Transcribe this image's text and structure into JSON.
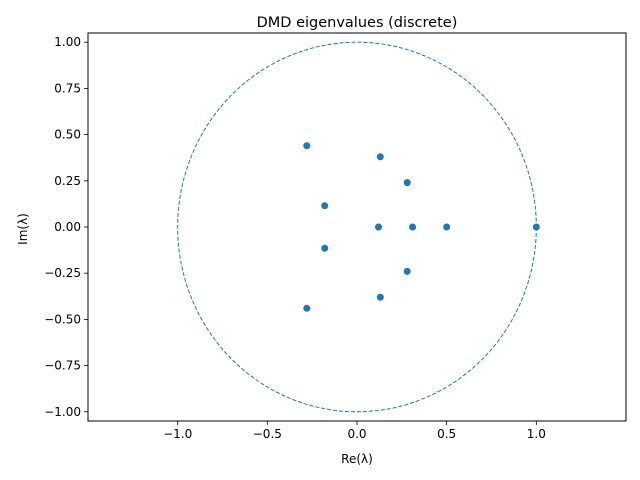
{
  "chart_data": {
    "type": "scatter",
    "title": "DMD eigenvalues (discrete)",
    "xlabel": "Re(λ)",
    "ylabel": "Im(λ)",
    "xlim": [
      -1.5,
      1.5
    ],
    "ylim": [
      -1.05,
      1.05
    ],
    "x_ticks": [
      -1.0,
      -0.5,
      0.0,
      0.5,
      1.0
    ],
    "x_tick_labels": [
      "−1.0",
      "−0.5",
      "0.0",
      "0.5",
      "1.0"
    ],
    "y_ticks": [
      -1.0,
      -0.75,
      -0.5,
      -0.25,
      0.0,
      0.25,
      0.5,
      0.75,
      1.0
    ],
    "y_tick_labels": [
      "−1.00",
      "−0.75",
      "−0.50",
      "−0.25",
      "0.00",
      "0.25",
      "0.50",
      "0.75",
      "1.00"
    ],
    "grid": false,
    "legend": "none",
    "marker_color": "#1f77b4",
    "circle_color": "#1f77b4",
    "unit_circle": {
      "center": [
        0,
        0
      ],
      "radius": 1,
      "style": "dashed"
    },
    "points": [
      {
        "x": 1.0,
        "y": 0.0
      },
      {
        "x": 0.5,
        "y": 0.0
      },
      {
        "x": 0.31,
        "y": 0.0
      },
      {
        "x": 0.12,
        "y": 0.0
      },
      {
        "x": 0.28,
        "y": 0.24
      },
      {
        "x": 0.28,
        "y": -0.24
      },
      {
        "x": 0.13,
        "y": 0.38
      },
      {
        "x": 0.13,
        "y": -0.38
      },
      {
        "x": -0.18,
        "y": 0.115
      },
      {
        "x": -0.18,
        "y": -0.115
      },
      {
        "x": -0.28,
        "y": 0.44
      },
      {
        "x": -0.28,
        "y": -0.44
      }
    ]
  }
}
